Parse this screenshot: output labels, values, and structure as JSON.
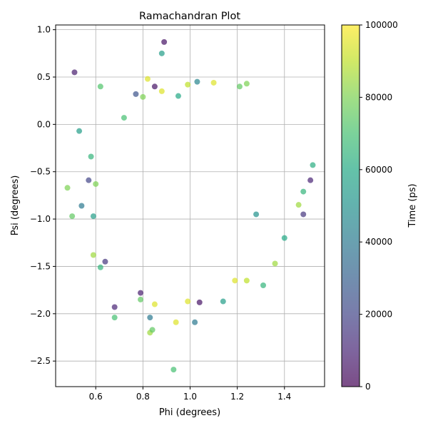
{
  "chart_data": {
    "type": "scatter",
    "title": "Ramachandran Plot",
    "xlabel": "Phi (degrees)",
    "ylabel": "Psi (degrees)",
    "xlim": [
      0.43,
      1.57
    ],
    "ylim": [
      -2.77,
      1.05
    ],
    "xticks": [
      0.6,
      0.8,
      1.0,
      1.2,
      1.4
    ],
    "xtick_labels": [
      "0.6",
      "0.8",
      "1.0",
      "1.2",
      "1.4"
    ],
    "yticks": [
      -2.5,
      -2.0,
      -1.5,
      -1.0,
      -0.5,
      0.0,
      0.5,
      1.0
    ],
    "ytick_labels": [
      "−2.5",
      "−2.0",
      "−1.5",
      "−1.0",
      "−0.5",
      "0.0",
      "0.5",
      "1.0"
    ],
    "grid": true,
    "marker_alpha": 0.7,
    "colormap": "viridis",
    "colorbar": {
      "label": "Time (ps)",
      "range": [
        0,
        100000
      ],
      "ticks": [
        0,
        20000,
        40000,
        60000,
        80000,
        100000
      ],
      "tick_labels": [
        "0",
        "20000",
        "40000",
        "60000",
        "80000",
        "100000"
      ]
    },
    "points": [
      {
        "x": 0.89,
        "y": 0.87,
        "t": 5000
      },
      {
        "x": 0.88,
        "y": 0.75,
        "t": 55000
      },
      {
        "x": 0.51,
        "y": 0.55,
        "t": 8000
      },
      {
        "x": 0.62,
        "y": 0.4,
        "t": 72000
      },
      {
        "x": 0.82,
        "y": 0.48,
        "t": 95000
      },
      {
        "x": 0.85,
        "y": 0.4,
        "t": 5000
      },
      {
        "x": 1.1,
        "y": 0.44,
        "t": 95000
      },
      {
        "x": 1.03,
        "y": 0.45,
        "t": 45000
      },
      {
        "x": 1.24,
        "y": 0.43,
        "t": 80000
      },
      {
        "x": 1.21,
        "y": 0.4,
        "t": 75000
      },
      {
        "x": 0.53,
        "y": -0.07,
        "t": 55000
      },
      {
        "x": 0.48,
        "y": -0.67,
        "t": 80000
      },
      {
        "x": 0.5,
        "y": -0.97,
        "t": 75000
      },
      {
        "x": 0.54,
        "y": -0.86,
        "t": 40000
      },
      {
        "x": 1.52,
        "y": -0.43,
        "t": 62000
      },
      {
        "x": 1.51,
        "y": -0.59,
        "t": 10000
      },
      {
        "x": 1.48,
        "y": -0.71,
        "t": 65000
      },
      {
        "x": 1.46,
        "y": -0.85,
        "t": 85000
      },
      {
        "x": 1.48,
        "y": -0.95,
        "t": 15000
      },
      {
        "x": 1.4,
        "y": -1.2,
        "t": 60000
      },
      {
        "x": 1.36,
        "y": -1.47,
        "t": 85000
      },
      {
        "x": 0.59,
        "y": -1.38,
        "t": 85000
      },
      {
        "x": 0.62,
        "y": -1.51,
        "t": 65000
      },
      {
        "x": 0.68,
        "y": -1.93,
        "t": 10000
      },
      {
        "x": 0.68,
        "y": -2.04,
        "t": 70000
      },
      {
        "x": 0.79,
        "y": -1.78,
        "t": 8000
      },
      {
        "x": 0.79,
        "y": -1.85,
        "t": 75000
      },
      {
        "x": 0.83,
        "y": -2.04,
        "t": 40000
      },
      {
        "x": 0.83,
        "y": -2.2,
        "t": 85000
      },
      {
        "x": 0.84,
        "y": -2.17,
        "t": 75000
      },
      {
        "x": 0.85,
        "y": -1.9,
        "t": 95000
      },
      {
        "x": 0.94,
        "y": -2.09,
        "t": 95000
      },
      {
        "x": 1.02,
        "y": -2.09,
        "t": 40000
      },
      {
        "x": 0.93,
        "y": -2.59,
        "t": 70000
      },
      {
        "x": 0.99,
        "y": -1.87,
        "t": 95000
      },
      {
        "x": 1.04,
        "y": -1.88,
        "t": 5000
      },
      {
        "x": 1.14,
        "y": -1.87,
        "t": 55000
      },
      {
        "x": 1.19,
        "y": -1.65,
        "t": 95000
      },
      {
        "x": 1.31,
        "y": -1.7,
        "t": 65000
      },
      {
        "x": 1.24,
        "y": -1.65,
        "t": 90000
      },
      {
        "x": 0.58,
        "y": -0.34,
        "t": 65000
      },
      {
        "x": 0.57,
        "y": -0.59,
        "t": 20000
      },
      {
        "x": 0.6,
        "y": -0.63,
        "t": 80000
      },
      {
        "x": 0.59,
        "y": -0.97,
        "t": 55000
      },
      {
        "x": 0.64,
        "y": -1.45,
        "t": 15000
      },
      {
        "x": 0.72,
        "y": 0.07,
        "t": 70000
      },
      {
        "x": 0.77,
        "y": 0.32,
        "t": 25000
      },
      {
        "x": 0.8,
        "y": 0.29,
        "t": 80000
      },
      {
        "x": 0.88,
        "y": 0.35,
        "t": 95000
      },
      {
        "x": 0.95,
        "y": 0.3,
        "t": 60000
      },
      {
        "x": 1.28,
        "y": -0.95,
        "t": 50000
      },
      {
        "x": 0.99,
        "y": 0.42,
        "t": 90000
      }
    ]
  }
}
